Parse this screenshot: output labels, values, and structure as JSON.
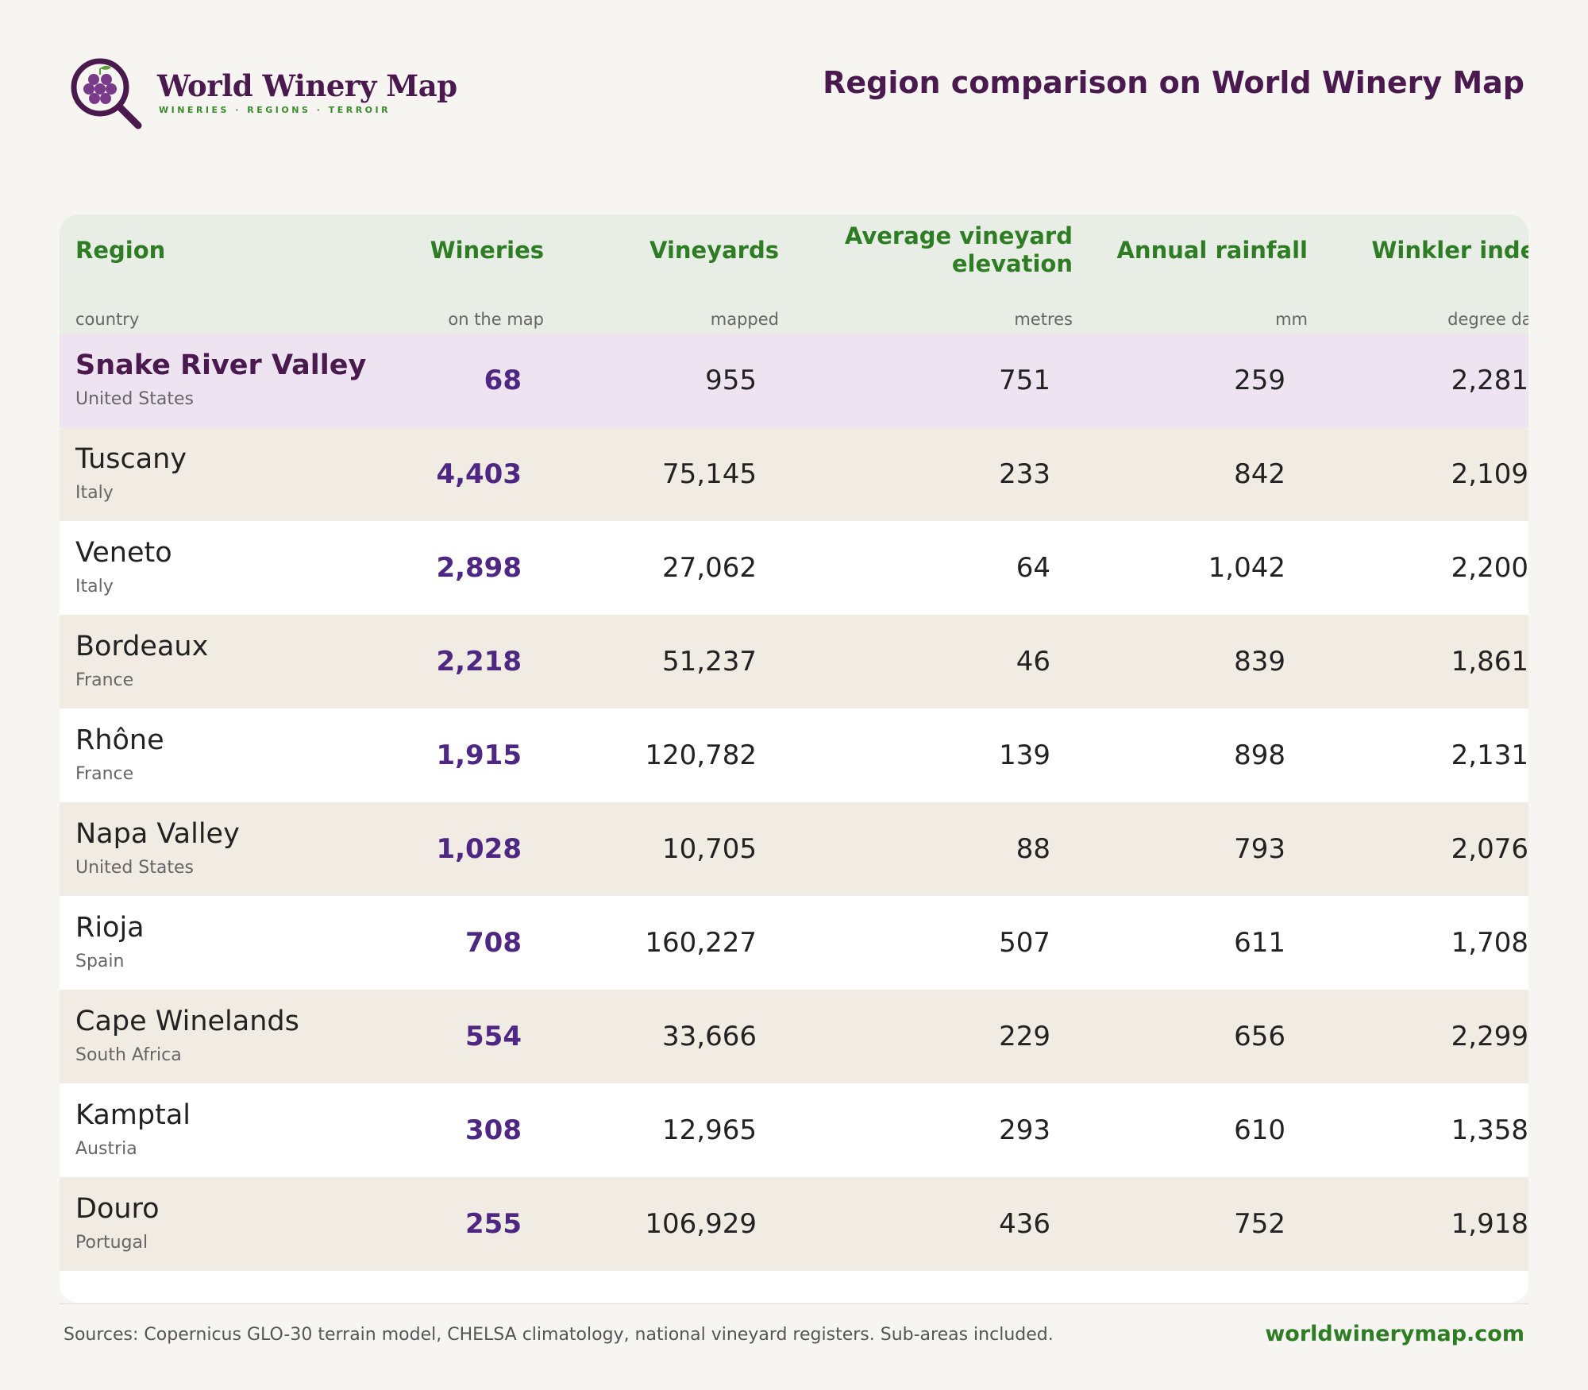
{
  "header": {
    "brand_name": "World Winery Map",
    "brand_tagline": "WINERIES · REGIONS · TERROIR",
    "title": "Region comparison on World Winery Map"
  },
  "table": {
    "columns": [
      {
        "label": "Region",
        "unit": "country"
      },
      {
        "label": "Wineries",
        "unit": "on the map"
      },
      {
        "label": "Vineyards",
        "unit": "mapped"
      },
      {
        "label_line1": "Average vineyard",
        "label_line2": "elevation",
        "unit": "metres"
      },
      {
        "label": "Annual rainfall",
        "unit": "mm"
      },
      {
        "label": "Winkler index",
        "unit": "degree days"
      }
    ],
    "rows": [
      {
        "region": "Snake River Valley",
        "country": "United States",
        "wineries": "68",
        "vineyards": "955",
        "elevation": "751",
        "rainfall": "259",
        "winkler": "2,281"
      },
      {
        "region": "Tuscany",
        "country": "Italy",
        "wineries": "4,403",
        "vineyards": "75,145",
        "elevation": "233",
        "rainfall": "842",
        "winkler": "2,109"
      },
      {
        "region": "Veneto",
        "country": "Italy",
        "wineries": "2,898",
        "vineyards": "27,062",
        "elevation": "64",
        "rainfall": "1,042",
        "winkler": "2,200"
      },
      {
        "region": "Bordeaux",
        "country": "France",
        "wineries": "2,218",
        "vineyards": "51,237",
        "elevation": "46",
        "rainfall": "839",
        "winkler": "1,861"
      },
      {
        "region": "Rhône",
        "country": "France",
        "wineries": "1,915",
        "vineyards": "120,782",
        "elevation": "139",
        "rainfall": "898",
        "winkler": "2,131"
      },
      {
        "region": "Napa Valley",
        "country": "United States",
        "wineries": "1,028",
        "vineyards": "10,705",
        "elevation": "88",
        "rainfall": "793",
        "winkler": "2,076"
      },
      {
        "region": "Rioja",
        "country": "Spain",
        "wineries": "708",
        "vineyards": "160,227",
        "elevation": "507",
        "rainfall": "611",
        "winkler": "1,708"
      },
      {
        "region": "Cape Winelands",
        "country": "South Africa",
        "wineries": "554",
        "vineyards": "33,666",
        "elevation": "229",
        "rainfall": "656",
        "winkler": "2,299"
      },
      {
        "region": "Kamptal",
        "country": "Austria",
        "wineries": "308",
        "vineyards": "12,965",
        "elevation": "293",
        "rainfall": "610",
        "winkler": "1,358"
      },
      {
        "region": "Douro",
        "country": "Portugal",
        "wineries": "255",
        "vineyards": "106,929",
        "elevation": "436",
        "rainfall": "752",
        "winkler": "1,918"
      }
    ]
  },
  "footer": {
    "sources": "Sources: Copernicus GLO-30 terrain model, CHELSA climatology, national vineyard registers. Sub-areas included.",
    "site": "worldwinerymap.com"
  },
  "colors": {
    "brand_purple": "#4a1a4f",
    "accent_green": "#2e7d24",
    "wineries_purple": "#4e2782",
    "highlight_row": "#ede3f1"
  },
  "icons": {
    "logo": "magnifier-grape-icon"
  }
}
